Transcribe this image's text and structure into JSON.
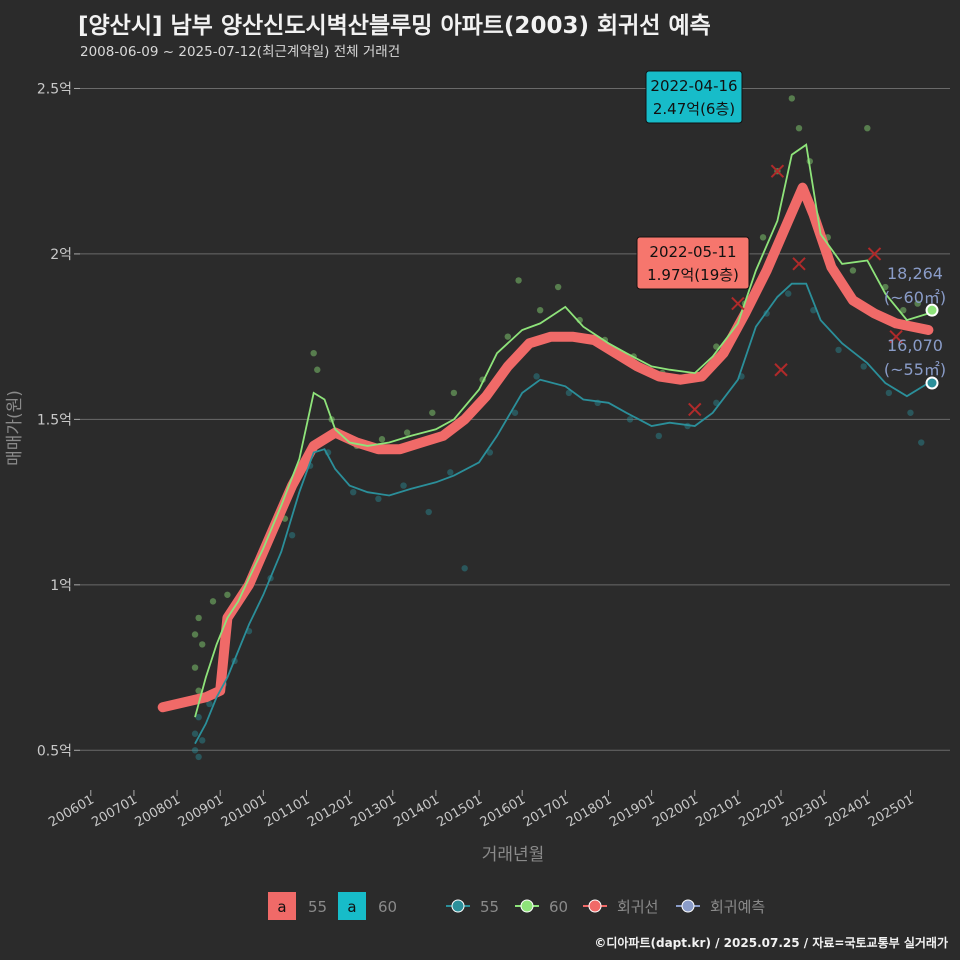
{
  "title": "[양산시] 남부 양산신도시벽산블루밍 아파트(2003) 회귀선 예측",
  "subtitle": "2008-06-09 ~ 2025-07-12(최근계약일) 전체 거래건",
  "footer": "©디아파트(dapt.kr) / 2025.07.25 / 자료=국토교통부 실거래가",
  "chart_data": {
    "type": "scatter",
    "xlabel": "거래년월",
    "ylabel": "매매가(원)",
    "xlim": [
      "2005-10",
      "2025-12"
    ],
    "ylim": [
      0.38,
      2.58
    ],
    "y_unit": "억",
    "x_ticks": [
      "200601",
      "200701",
      "200801",
      "200901",
      "201001",
      "201101",
      "201201",
      "201301",
      "201401",
      "201501",
      "201601",
      "201701",
      "201801",
      "201901",
      "202001",
      "202101",
      "202201",
      "202301",
      "202401",
      "202501"
    ],
    "y_ticks": [
      {
        "value": 0.5,
        "label": "0.5억"
      },
      {
        "value": 1.0,
        "label": "1억"
      },
      {
        "value": 1.5,
        "label": "1.5억"
      },
      {
        "value": 2.0,
        "label": "2억"
      },
      {
        "value": 2.5,
        "label": "2.5억"
      }
    ],
    "colors": {
      "s55": "#2b8f9a",
      "s60": "#8ee37a",
      "regression": "#f06a68",
      "prediction": "#8a9cc8",
      "callout_60": "#17bcc9",
      "callout_reg": "#f6766d"
    },
    "series": [
      {
        "name": "55",
        "trend": [
          {
            "x": "2008-06",
            "y": 0.52
          },
          {
            "x": "2008-09",
            "y": 0.58
          },
          {
            "x": "2008-12",
            "y": 0.66
          },
          {
            "x": "2009-03",
            "y": 0.72
          },
          {
            "x": "2009-06",
            "y": 0.8
          },
          {
            "x": "2009-09",
            "y": 0.88
          },
          {
            "x": "2010-01",
            "y": 0.97
          },
          {
            "x": "2010-06",
            "y": 1.1
          },
          {
            "x": "2010-11",
            "y": 1.28
          },
          {
            "x": "2011-03",
            "y": 1.4
          },
          {
            "x": "2011-06",
            "y": 1.41
          },
          {
            "x": "2011-09",
            "y": 1.35
          },
          {
            "x": "2012-01",
            "y": 1.3
          },
          {
            "x": "2012-06",
            "y": 1.28
          },
          {
            "x": "2012-12",
            "y": 1.27
          },
          {
            "x": "2013-06",
            "y": 1.29
          },
          {
            "x": "2014-01",
            "y": 1.31
          },
          {
            "x": "2014-06",
            "y": 1.33
          },
          {
            "x": "2015-01",
            "y": 1.37
          },
          {
            "x": "2015-06",
            "y": 1.45
          },
          {
            "x": "2016-01",
            "y": 1.58
          },
          {
            "x": "2016-06",
            "y": 1.62
          },
          {
            "x": "2017-01",
            "y": 1.6
          },
          {
            "x": "2017-06",
            "y": 1.56
          },
          {
            "x": "2018-01",
            "y": 1.55
          },
          {
            "x": "2018-06",
            "y": 1.52
          },
          {
            "x": "2019-01",
            "y": 1.48
          },
          {
            "x": "2019-06",
            "y": 1.49
          },
          {
            "x": "2020-01",
            "y": 1.48
          },
          {
            "x": "2020-06",
            "y": 1.52
          },
          {
            "x": "2021-01",
            "y": 1.62
          },
          {
            "x": "2021-06",
            "y": 1.78
          },
          {
            "x": "2021-12",
            "y": 1.87
          },
          {
            "x": "2022-04",
            "y": 1.91
          },
          {
            "x": "2022-08",
            "y": 1.91
          },
          {
            "x": "2022-12",
            "y": 1.8
          },
          {
            "x": "2023-06",
            "y": 1.73
          },
          {
            "x": "2024-01",
            "y": 1.67
          },
          {
            "x": "2024-06",
            "y": 1.61
          },
          {
            "x": "2024-12",
            "y": 1.57
          },
          {
            "x": "2025-06",
            "y": 1.61
          }
        ]
      },
      {
        "name": "60",
        "trend": [
          {
            "x": "2008-06",
            "y": 0.6
          },
          {
            "x": "2008-09",
            "y": 0.72
          },
          {
            "x": "2008-12",
            "y": 0.82
          },
          {
            "x": "2009-03",
            "y": 0.9
          },
          {
            "x": "2009-06",
            "y": 0.95
          },
          {
            "x": "2009-09",
            "y": 1.02
          },
          {
            "x": "2010-01",
            "y": 1.11
          },
          {
            "x": "2010-06",
            "y": 1.24
          },
          {
            "x": "2010-11",
            "y": 1.38
          },
          {
            "x": "2011-03",
            "y": 1.58
          },
          {
            "x": "2011-06",
            "y": 1.56
          },
          {
            "x": "2011-09",
            "y": 1.47
          },
          {
            "x": "2012-01",
            "y": 1.43
          },
          {
            "x": "2012-06",
            "y": 1.42
          },
          {
            "x": "2012-12",
            "y": 1.43
          },
          {
            "x": "2013-06",
            "y": 1.45
          },
          {
            "x": "2014-01",
            "y": 1.47
          },
          {
            "x": "2014-06",
            "y": 1.5
          },
          {
            "x": "2015-01",
            "y": 1.59
          },
          {
            "x": "2015-06",
            "y": 1.7
          },
          {
            "x": "2016-01",
            "y": 1.77
          },
          {
            "x": "2016-06",
            "y": 1.79
          },
          {
            "x": "2017-01",
            "y": 1.84
          },
          {
            "x": "2017-06",
            "y": 1.78
          },
          {
            "x": "2018-01",
            "y": 1.73
          },
          {
            "x": "2018-06",
            "y": 1.7
          },
          {
            "x": "2019-01",
            "y": 1.66
          },
          {
            "x": "2019-06",
            "y": 1.65
          },
          {
            "x": "2020-01",
            "y": 1.64
          },
          {
            "x": "2020-06",
            "y": 1.69
          },
          {
            "x": "2021-01",
            "y": 1.79
          },
          {
            "x": "2021-06",
            "y": 1.95
          },
          {
            "x": "2021-12",
            "y": 2.1
          },
          {
            "x": "2022-04",
            "y": 2.3
          },
          {
            "x": "2022-08",
            "y": 2.33
          },
          {
            "x": "2022-12",
            "y": 2.06
          },
          {
            "x": "2023-06",
            "y": 1.97
          },
          {
            "x": "2024-01",
            "y": 1.98
          },
          {
            "x": "2024-06",
            "y": 1.88
          },
          {
            "x": "2024-12",
            "y": 1.8
          },
          {
            "x": "2025-06",
            "y": 1.82
          }
        ]
      }
    ],
    "regression": [
      {
        "x": "2007-09",
        "y": 0.63
      },
      {
        "x": "2008-03",
        "y": 0.645
      },
      {
        "x": "2008-09",
        "y": 0.66
      },
      {
        "x": "2009-01",
        "y": 0.68
      },
      {
        "x": "2009-03",
        "y": 0.9
      },
      {
        "x": "2009-09",
        "y": 1.0
      },
      {
        "x": "2010-03",
        "y": 1.15
      },
      {
        "x": "2010-09",
        "y": 1.3
      },
      {
        "x": "2011-03",
        "y": 1.42
      },
      {
        "x": "2011-09",
        "y": 1.46
      },
      {
        "x": "2012-03",
        "y": 1.43
      },
      {
        "x": "2012-09",
        "y": 1.41
      },
      {
        "x": "2013-03",
        "y": 1.41
      },
      {
        "x": "2013-09",
        "y": 1.43
      },
      {
        "x": "2014-03",
        "y": 1.45
      },
      {
        "x": "2014-09",
        "y": 1.5
      },
      {
        "x": "2015-03",
        "y": 1.57
      },
      {
        "x": "2015-09",
        "y": 1.66
      },
      {
        "x": "2016-03",
        "y": 1.73
      },
      {
        "x": "2016-09",
        "y": 1.75
      },
      {
        "x": "2017-03",
        "y": 1.75
      },
      {
        "x": "2017-09",
        "y": 1.74
      },
      {
        "x": "2018-03",
        "y": 1.7
      },
      {
        "x": "2018-09",
        "y": 1.66
      },
      {
        "x": "2019-03",
        "y": 1.63
      },
      {
        "x": "2019-09",
        "y": 1.62
      },
      {
        "x": "2020-03",
        "y": 1.63
      },
      {
        "x": "2020-09",
        "y": 1.7
      },
      {
        "x": "2021-03",
        "y": 1.82
      },
      {
        "x": "2021-09",
        "y": 1.95
      },
      {
        "x": "2022-03",
        "y": 2.1
      },
      {
        "x": "2022-07",
        "y": 2.2
      },
      {
        "x": "2022-10",
        "y": 2.12
      },
      {
        "x": "2023-03",
        "y": 1.96
      },
      {
        "x": "2023-09",
        "y": 1.86
      },
      {
        "x": "2024-03",
        "y": 1.82
      },
      {
        "x": "2024-09",
        "y": 1.79
      },
      {
        "x": "2025-06",
        "y": 1.77
      }
    ],
    "regression_outliers": [
      {
        "x": "2020-01",
        "y": 1.53
      },
      {
        "x": "2021-01",
        "y": 1.85
      },
      {
        "x": "2021-12",
        "y": 2.25
      },
      {
        "x": "2022-01",
        "y": 1.65
      },
      {
        "x": "2022-06",
        "y": 1.97
      },
      {
        "x": "2024-03",
        "y": 2.0
      },
      {
        "x": "2024-09",
        "y": 1.75
      }
    ],
    "scatter_points": [
      {
        "series": "55",
        "x": "2008-06",
        "y": 0.5
      },
      {
        "series": "55",
        "x": "2008-06",
        "y": 0.55
      },
      {
        "series": "55",
        "x": "2008-07",
        "y": 0.6
      },
      {
        "series": "55",
        "x": "2008-07",
        "y": 0.48
      },
      {
        "series": "55",
        "x": "2008-08",
        "y": 0.53
      },
      {
        "series": "55",
        "x": "2008-10",
        "y": 0.64
      },
      {
        "series": "55",
        "x": "2009-02",
        "y": 0.7
      },
      {
        "series": "55",
        "x": "2009-05",
        "y": 0.77
      },
      {
        "series": "55",
        "x": "2009-09",
        "y": 0.86
      },
      {
        "series": "55",
        "x": "2010-03",
        "y": 1.02
      },
      {
        "series": "55",
        "x": "2010-09",
        "y": 1.15
      },
      {
        "series": "55",
        "x": "2011-02",
        "y": 1.36
      },
      {
        "series": "55",
        "x": "2011-07",
        "y": 1.4
      },
      {
        "series": "55",
        "x": "2012-02",
        "y": 1.28
      },
      {
        "series": "55",
        "x": "2012-09",
        "y": 1.26
      },
      {
        "series": "55",
        "x": "2013-04",
        "y": 1.3
      },
      {
        "series": "55",
        "x": "2013-11",
        "y": 1.22
      },
      {
        "series": "55",
        "x": "2014-05",
        "y": 1.34
      },
      {
        "series": "55",
        "x": "2014-09",
        "y": 1.05
      },
      {
        "series": "55",
        "x": "2015-04",
        "y": 1.4
      },
      {
        "series": "55",
        "x": "2015-11",
        "y": 1.52
      },
      {
        "series": "55",
        "x": "2016-05",
        "y": 1.63
      },
      {
        "series": "55",
        "x": "2017-02",
        "y": 1.58
      },
      {
        "series": "55",
        "x": "2017-10",
        "y": 1.55
      },
      {
        "series": "55",
        "x": "2018-07",
        "y": 1.5
      },
      {
        "series": "55",
        "x": "2019-03",
        "y": 1.45
      },
      {
        "series": "55",
        "x": "2019-11",
        "y": 1.48
      },
      {
        "series": "55",
        "x": "2020-07",
        "y": 1.55
      },
      {
        "series": "55",
        "x": "2021-02",
        "y": 1.63
      },
      {
        "series": "55",
        "x": "2021-09",
        "y": 1.82
      },
      {
        "series": "55",
        "x": "2022-03",
        "y": 1.88
      },
      {
        "series": "55",
        "x": "2022-10",
        "y": 1.83
      },
      {
        "series": "55",
        "x": "2023-05",
        "y": 1.71
      },
      {
        "series": "55",
        "x": "2023-12",
        "y": 1.66
      },
      {
        "series": "55",
        "x": "2024-07",
        "y": 1.58
      },
      {
        "series": "55",
        "x": "2025-01",
        "y": 1.52
      },
      {
        "series": "55",
        "x": "2025-04",
        "y": 1.43
      },
      {
        "series": "60",
        "x": "2008-06",
        "y": 0.85
      },
      {
        "series": "60",
        "x": "2008-06",
        "y": 0.75
      },
      {
        "series": "60",
        "x": "2008-07",
        "y": 0.9
      },
      {
        "series": "60",
        "x": "2008-07",
        "y": 0.68
      },
      {
        "series": "60",
        "x": "2008-08",
        "y": 0.82
      },
      {
        "series": "60",
        "x": "2008-11",
        "y": 0.95
      },
      {
        "series": "60",
        "x": "2009-03",
        "y": 0.97
      },
      {
        "series": "60",
        "x": "2009-08",
        "y": 0.99
      },
      {
        "series": "60",
        "x": "2010-02",
        "y": 1.13
      },
      {
        "series": "60",
        "x": "2010-07",
        "y": 1.2
      },
      {
        "series": "60",
        "x": "2010-12",
        "y": 1.35
      },
      {
        "series": "60",
        "x": "2011-03",
        "y": 1.7
      },
      {
        "series": "60",
        "x": "2011-04",
        "y": 1.65
      },
      {
        "series": "60",
        "x": "2011-08",
        "y": 1.5
      },
      {
        "series": "60",
        "x": "2012-03",
        "y": 1.42
      },
      {
        "series": "60",
        "x": "2012-10",
        "y": 1.44
      },
      {
        "series": "60",
        "x": "2013-05",
        "y": 1.46
      },
      {
        "series": "60",
        "x": "2013-12",
        "y": 1.52
      },
      {
        "series": "60",
        "x": "2014-06",
        "y": 1.58
      },
      {
        "series": "60",
        "x": "2015-02",
        "y": 1.62
      },
      {
        "series": "60",
        "x": "2015-09",
        "y": 1.75
      },
      {
        "series": "60",
        "x": "2015-12",
        "y": 1.92
      },
      {
        "series": "60",
        "x": "2016-06",
        "y": 1.83
      },
      {
        "series": "60",
        "x": "2016-11",
        "y": 1.9
      },
      {
        "series": "60",
        "x": "2017-05",
        "y": 1.8
      },
      {
        "series": "60",
        "x": "2017-12",
        "y": 1.74
      },
      {
        "series": "60",
        "x": "2018-08",
        "y": 1.69
      },
      {
        "series": "60",
        "x": "2019-04",
        "y": 1.64
      },
      {
        "series": "60",
        "x": "2019-12",
        "y": 1.63
      },
      {
        "series": "60",
        "x": "2020-07",
        "y": 1.72
      },
      {
        "series": "60",
        "x": "2021-03",
        "y": 1.85
      },
      {
        "series": "60",
        "x": "2021-08",
        "y": 2.05
      },
      {
        "series": "60",
        "x": "2021-12",
        "y": 2.25
      },
      {
        "series": "60",
        "x": "2022-04",
        "y": 2.47
      },
      {
        "series": "60",
        "x": "2022-06",
        "y": 2.38
      },
      {
        "series": "60",
        "x": "2022-09",
        "y": 2.28
      },
      {
        "series": "60",
        "x": "2023-02",
        "y": 2.05
      },
      {
        "series": "60",
        "x": "2023-09",
        "y": 1.95
      },
      {
        "series": "60",
        "x": "2024-01",
        "y": 2.38
      },
      {
        "series": "60",
        "x": "2024-06",
        "y": 1.9
      },
      {
        "series": "60",
        "x": "2024-11",
        "y": 1.83
      },
      {
        "series": "60",
        "x": "2025-03",
        "y": 1.85
      }
    ],
    "annotations": [
      {
        "kind": "callout_60",
        "date": "2022-04-16",
        "value": "2.47억(6층)",
        "x": "2022-04",
        "y": 2.47
      },
      {
        "kind": "callout_reg",
        "date": "2022-05-11",
        "value": "1.97억(19층)",
        "x": "2022-05",
        "y": 1.97
      }
    ],
    "end_labels": [
      {
        "series": "60",
        "price": "18,264",
        "area": "(~60㎡)",
        "x": "2025-07",
        "y": 1.83
      },
      {
        "series": "55",
        "price": "16,070",
        "area": "(~55㎡)",
        "x": "2025-07",
        "y": 1.61
      }
    ],
    "legend": {
      "placement": "bottom",
      "fill_items": [
        "55",
        "60"
      ],
      "fill_glyph": "a",
      "line_items": [
        "55",
        "60",
        "회귀선",
        "회귀예측"
      ]
    }
  }
}
